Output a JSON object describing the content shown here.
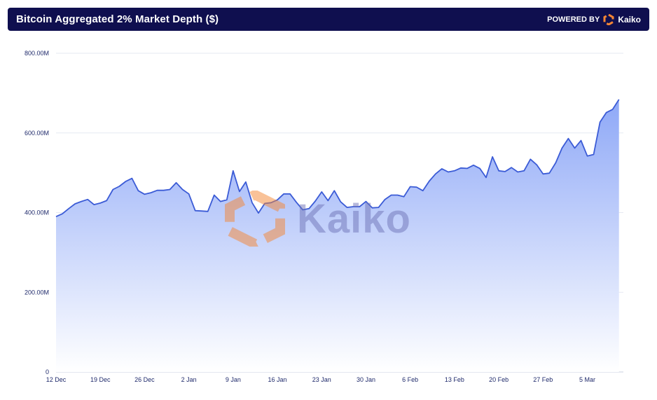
{
  "header": {
    "title": "Bitcoin Aggregated 2% Market Depth ($)",
    "powered_by": "POWERED BY",
    "brand": "Kaiko"
  },
  "watermark": {
    "text": "Kaiko"
  },
  "colors": {
    "header_bg": "#0f0f4f",
    "line": "#3b5bd6",
    "fill_top": "#8ea8f7",
    "fill_bottom": "#ffffff",
    "logo_orange": "#f58634"
  },
  "chart_data": {
    "type": "area",
    "title": "Bitcoin Aggregated 2% Market Depth ($)",
    "xlabel": "",
    "ylabel": "",
    "x_start": "12 Dec",
    "x_end": "13 Mar",
    "x_ticks": [
      "12 Dec",
      "19 Dec",
      "26 Dec",
      "2 Jan",
      "9 Jan",
      "16 Jan",
      "23 Jan",
      "30 Jan",
      "6 Feb",
      "13 Feb",
      "20 Feb",
      "27 Feb",
      "5 Mar"
    ],
    "y_ticks": [
      0,
      200,
      400,
      600,
      800
    ],
    "y_tick_labels": [
      "0",
      "200.00M",
      "400.00M",
      "600.00M",
      "800.00M"
    ],
    "ylim": [
      0,
      800
    ],
    "units": "M",
    "grid": true,
    "values": [
      390,
      397,
      410,
      422,
      428,
      433,
      420,
      424,
      430,
      458,
      466,
      478,
      486,
      455,
      446,
      450,
      456,
      456,
      458,
      475,
      458,
      447,
      405,
      404,
      403,
      444,
      428,
      432,
      505,
      453,
      477,
      425,
      399,
      423,
      425,
      432,
      447,
      447,
      426,
      407,
      410,
      429,
      452,
      430,
      455,
      427,
      413,
      415,
      415,
      428,
      412,
      413,
      433,
      444,
      444,
      440,
      465,
      464,
      455,
      479,
      497,
      510,
      502,
      505,
      512,
      511,
      519,
      511,
      488,
      540,
      505,
      503,
      513,
      502,
      505,
      534,
      520,
      497,
      499,
      525,
      562,
      586,
      562,
      581,
      542,
      546,
      627,
      651,
      659,
      684
    ]
  }
}
